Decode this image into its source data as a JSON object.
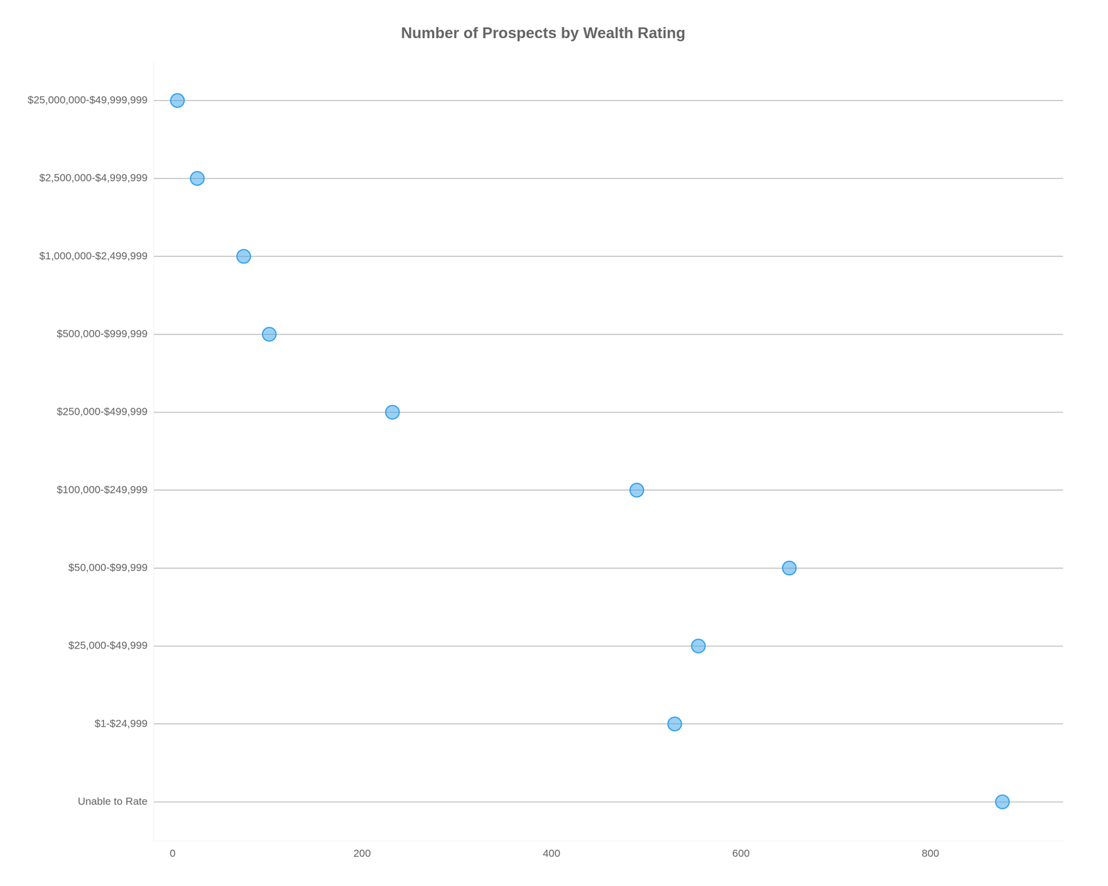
{
  "chart_data": {
    "type": "dot",
    "title": "Number of Prospects by Wealth Rating",
    "categories": [
      "$25,000,000-$49,999,999",
      "$2,500,000-$4,999,999",
      "$1,000,000-$2,499,999",
      "$500,000-$999,999",
      "$250,000-$499,999",
      "$100,000-$249,999",
      "$50,000-$99,999",
      "$25,000-$49,999",
      "$1-$24,999",
      "Unable to Rate"
    ],
    "values": [
      5,
      26,
      75,
      102,
      232,
      490,
      651,
      555,
      530,
      876
    ],
    "xlim": [
      -20,
      940
    ],
    "xticks": [
      0,
      200,
      400,
      600,
      800
    ],
    "marker": "circle",
    "line_style": "dotted"
  }
}
